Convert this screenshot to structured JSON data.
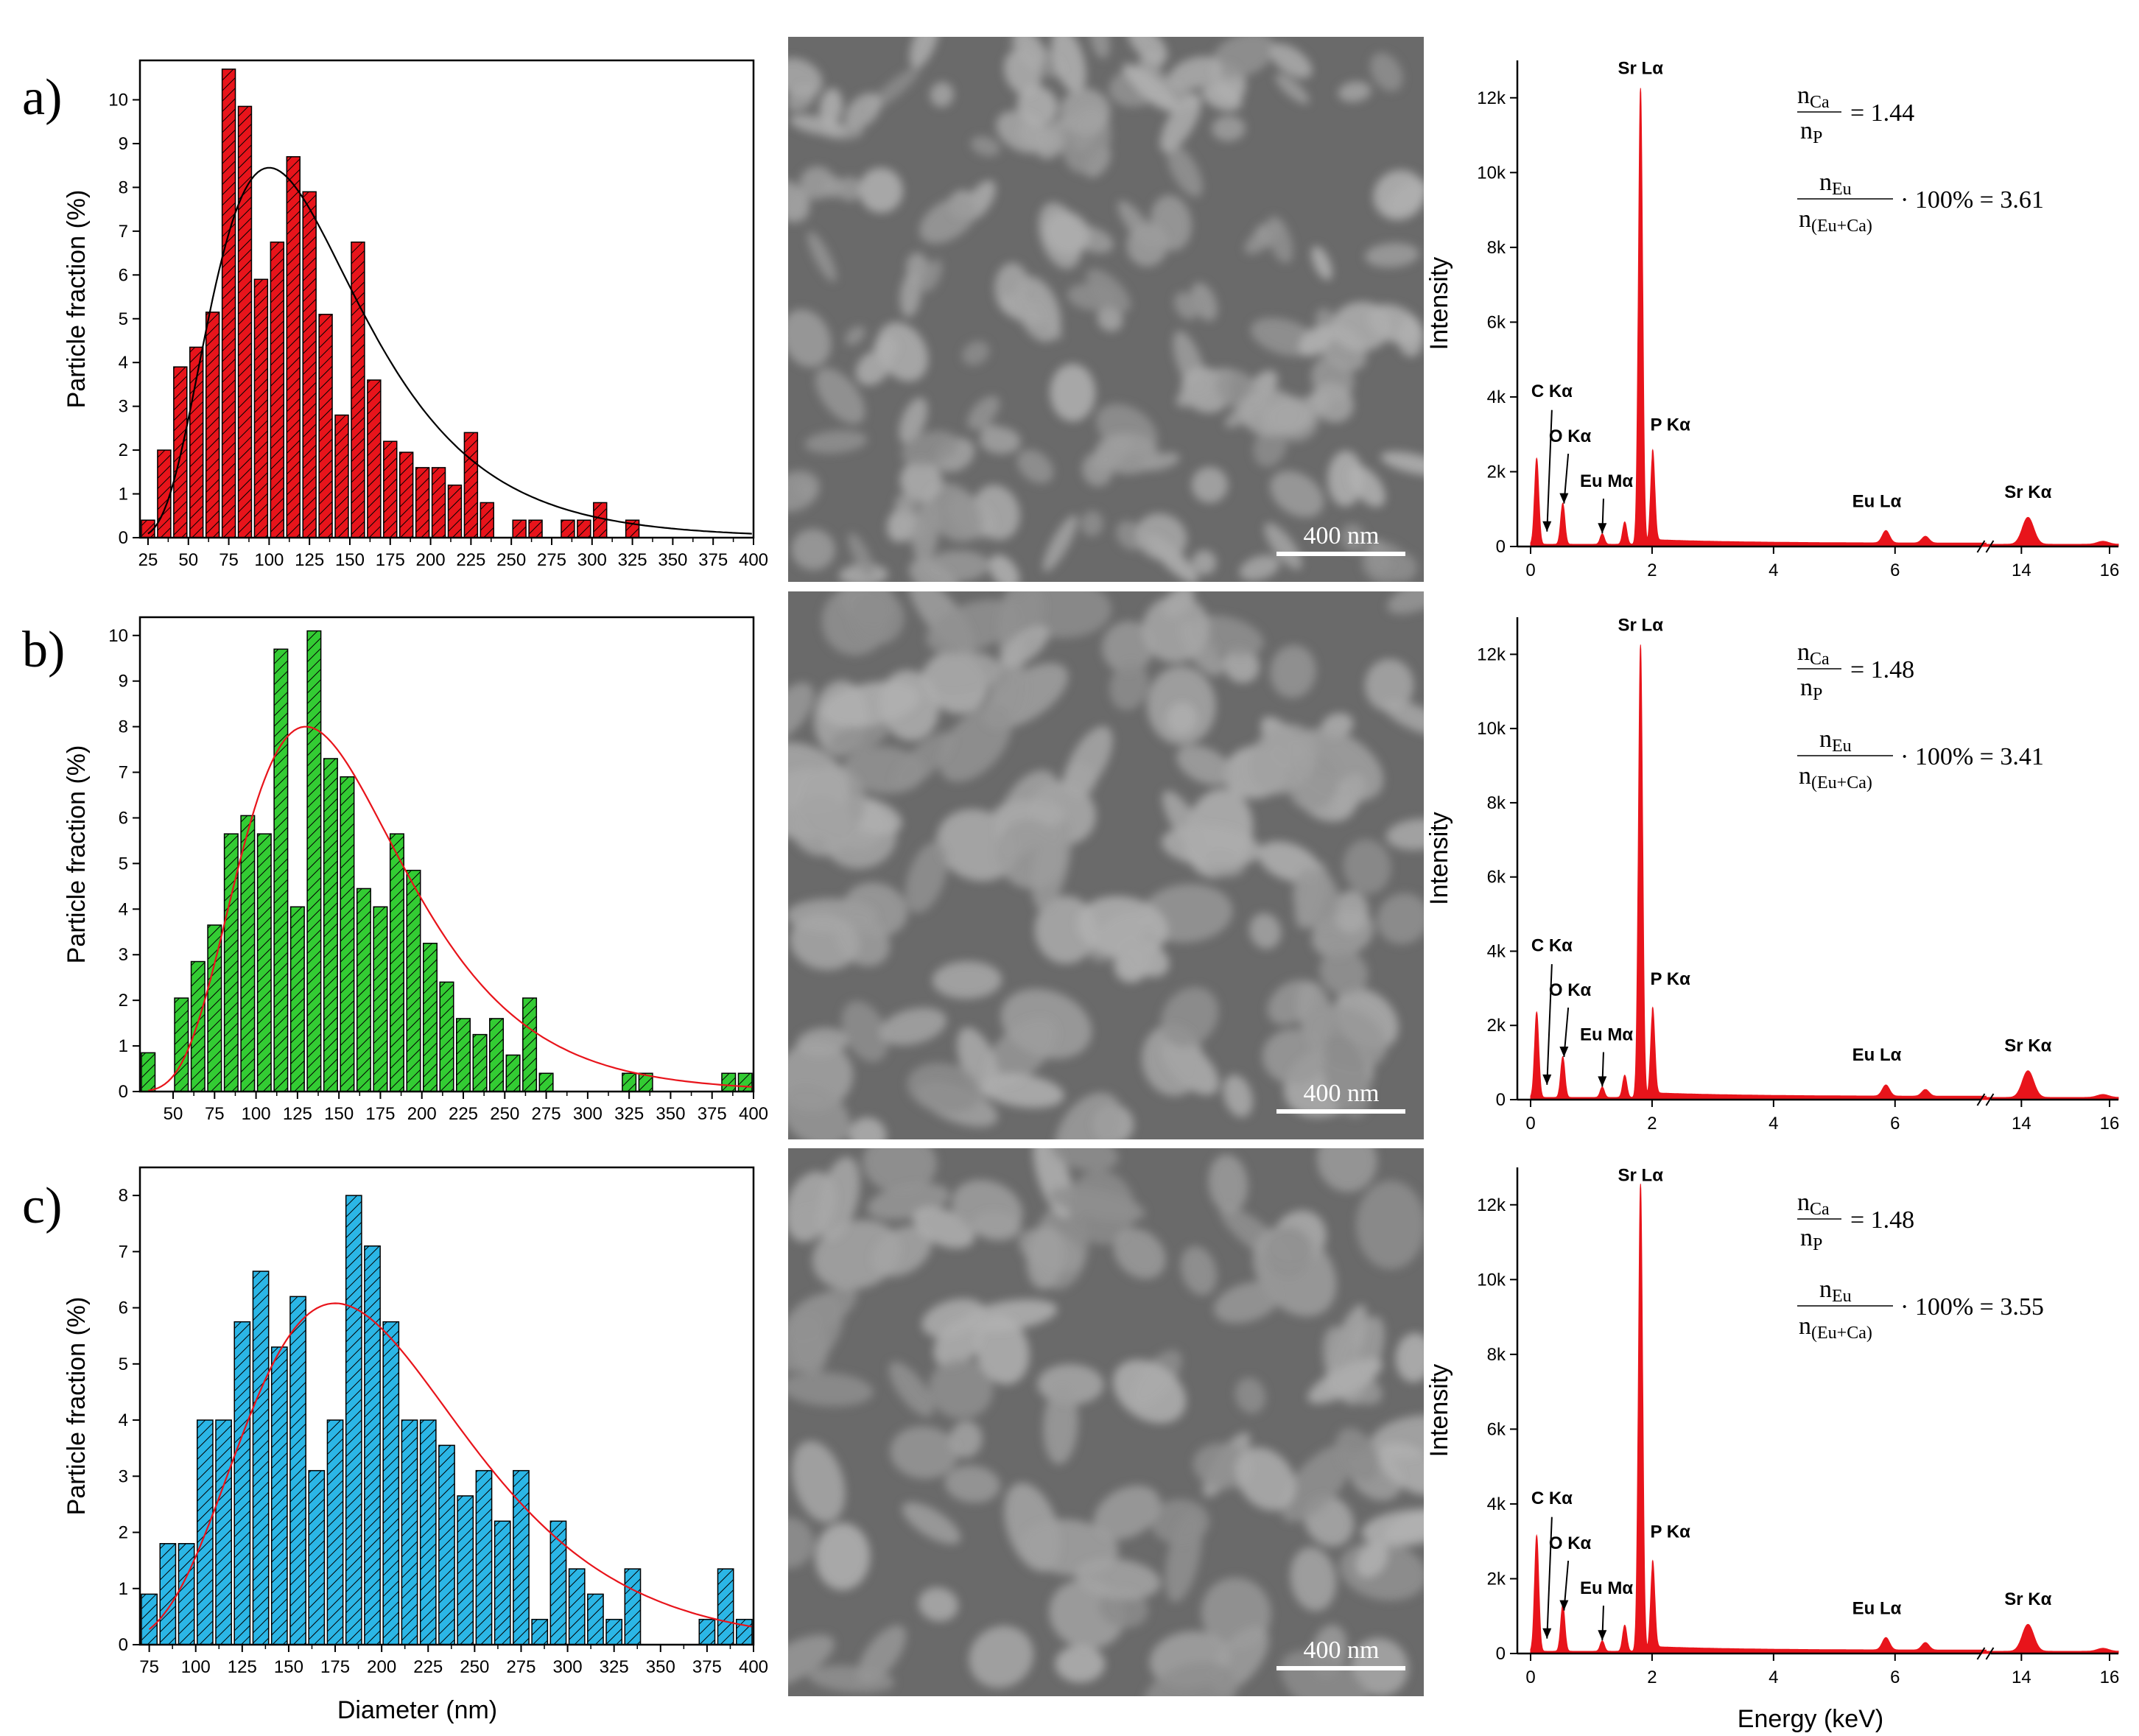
{
  "figure": {
    "panel_labels": [
      "a)",
      "b)",
      "c)"
    ],
    "sem_scale_bar": "400 nm",
    "colors": {
      "red": "#e8141b",
      "green": "#33cc33",
      "blue": "#2bb6e6",
      "sem_bg": "#6a6a6a",
      "sem_particle": "#9c9c9c"
    }
  },
  "chart_data": [
    {
      "type": "bar",
      "panel": "a)",
      "xlabel": "",
      "ylabel": "Particle fraction (%)",
      "xlim": [
        20,
        400
      ],
      "ylim": [
        0,
        10.9
      ],
      "xticks": [
        25,
        50,
        75,
        100,
        125,
        150,
        175,
        200,
        225,
        250,
        275,
        300,
        325,
        350,
        375,
        400
      ],
      "yticks": [
        0,
        1,
        2,
        3,
        4,
        5,
        6,
        7,
        8,
        9,
        10
      ],
      "bin_width": 10,
      "bar_color": "#e8141b",
      "x": [
        25,
        35,
        45,
        55,
        65,
        75,
        85,
        95,
        105,
        115,
        125,
        135,
        145,
        155,
        165,
        175,
        185,
        195,
        205,
        215,
        225,
        235,
        245,
        255,
        265,
        275,
        285,
        295,
        305,
        315,
        325
      ],
      "values": [
        0.4,
        2.0,
        3.9,
        4.35,
        5.15,
        10.7,
        9.85,
        5.9,
        6.75,
        8.7,
        7.9,
        5.1,
        2.8,
        6.75,
        3.6,
        2.2,
        1.95,
        1.6,
        1.6,
        1.2,
        2.4,
        0.8,
        0,
        0.4,
        0.4,
        0,
        0.4,
        0.4,
        0.8,
        0,
        0.4
      ],
      "fit": {
        "color": "#000000",
        "type": "lognormal",
        "peak_x": 100,
        "peak_y": 8.45,
        "left_x": 25,
        "left_y": 2.65,
        "right_x": 400,
        "right_y": 0.02
      }
    },
    {
      "type": "bar",
      "panel": "b)",
      "xlabel": "",
      "ylabel": "Particle fraction (%)",
      "xlim": [
        30,
        400
      ],
      "ylim": [
        0,
        10.4
      ],
      "xticks": [
        50,
        75,
        100,
        125,
        150,
        175,
        200,
        225,
        250,
        275,
        300,
        325,
        350,
        375,
        400
      ],
      "yticks": [
        0,
        1,
        2,
        3,
        4,
        5,
        6,
        7,
        8,
        9,
        10
      ],
      "bin_width": 10,
      "bar_color": "#33cc33",
      "x": [
        35,
        45,
        55,
        65,
        75,
        85,
        95,
        105,
        115,
        125,
        135,
        145,
        155,
        165,
        175,
        185,
        195,
        205,
        215,
        225,
        235,
        245,
        255,
        265,
        275,
        285,
        295,
        305,
        315,
        325,
        335,
        345,
        355,
        365,
        375,
        385,
        395
      ],
      "values": [
        0.85,
        0,
        2.05,
        2.85,
        3.65,
        5.65,
        6.05,
        5.65,
        9.7,
        4.05,
        10.1,
        7.3,
        6.9,
        4.45,
        4.05,
        5.65,
        4.85,
        3.25,
        2.4,
        1.6,
        1.25,
        1.6,
        0.8,
        2.05,
        0.4,
        0,
        0,
        0,
        0,
        0.4,
        0.4,
        0,
        0,
        0,
        0,
        0.4,
        0.4
      ]
    },
    {
      "type": "bar",
      "panel": "c)",
      "xlabel": "Diameter (nm)",
      "ylabel": "Particle fraction (%)",
      "xlim": [
        70,
        400
      ],
      "ylim": [
        0,
        8.5
      ],
      "xticks": [
        75,
        100,
        125,
        150,
        175,
        200,
        225,
        250,
        275,
        300,
        325,
        350,
        375,
        400
      ],
      "yticks": [
        0,
        1,
        2,
        3,
        4,
        5,
        6,
        7,
        8
      ],
      "bin_width": 10,
      "bar_color": "#2bb6e6",
      "x": [
        75,
        85,
        95,
        105,
        115,
        125,
        135,
        145,
        155,
        165,
        175,
        185,
        195,
        205,
        215,
        225,
        235,
        245,
        255,
        265,
        275,
        285,
        295,
        305,
        315,
        325,
        335,
        345,
        355,
        365,
        375,
        385,
        395
      ],
      "values": [
        0.9,
        1.8,
        1.8,
        4.0,
        4.0,
        5.75,
        6.65,
        5.3,
        6.2,
        3.1,
        4.0,
        8.0,
        7.1,
        5.75,
        4.0,
        4.0,
        3.55,
        2.65,
        3.1,
        2.2,
        3.1,
        0.45,
        2.2,
        1.35,
        0.9,
        0.45,
        1.35,
        0,
        0,
        0,
        0.45,
        1.35,
        0.45
      ]
    },
    {
      "type": "area",
      "panel": "a)",
      "ylabel": "Intensity",
      "xlabel": "",
      "color": "#e8141b",
      "xticks": [
        0,
        2,
        4,
        6,
        14,
        16
      ],
      "ytick_labels": [
        "0",
        "2k",
        "4k",
        "6k",
        "8k",
        "10k",
        "12k"
      ],
      "ylim": [
        0,
        13000
      ],
      "axis_break": [
        7.5,
        13.2
      ],
      "peaks": [
        {
          "x": 0.1,
          "y": 2300
        },
        {
          "x": 0.53,
          "y": 1100
        },
        {
          "x": 1.18,
          "y": 280
        },
        {
          "x": 1.55,
          "y": 600
        },
        {
          "x": 1.81,
          "y": 12200
        },
        {
          "x": 2.01,
          "y": 2400
        },
        {
          "x": 5.85,
          "y": 330
        },
        {
          "x": 6.5,
          "y": 180
        },
        {
          "x": 14.15,
          "y": 720
        },
        {
          "x": 15.85,
          "y": 80
        }
      ],
      "labels": [
        "Sr Lα",
        "C Kα",
        "O Kα",
        "Eu Mα",
        "P Kα",
        "Eu Lα",
        "Sr Kα"
      ],
      "ratio_ca_p": "= 1.44",
      "ratio_eu": "· 100% = 3.61"
    },
    {
      "type": "area",
      "panel": "b)",
      "ylabel": "Intensity",
      "xlabel": "",
      "color": "#e8141b",
      "xticks": [
        0,
        2,
        4,
        6,
        14,
        16
      ],
      "ytick_labels": [
        "0",
        "2k",
        "4k",
        "6k",
        "8k",
        "10k",
        "12k"
      ],
      "ylim": [
        0,
        13000
      ],
      "axis_break": [
        7.5,
        13.2
      ],
      "peaks": [
        {
          "x": 0.1,
          "y": 2300
        },
        {
          "x": 0.53,
          "y": 1100
        },
        {
          "x": 1.18,
          "y": 280
        },
        {
          "x": 1.55,
          "y": 600
        },
        {
          "x": 1.81,
          "y": 12200
        },
        {
          "x": 2.01,
          "y": 2300
        },
        {
          "x": 5.85,
          "y": 300
        },
        {
          "x": 6.5,
          "y": 180
        },
        {
          "x": 14.15,
          "y": 720
        },
        {
          "x": 15.85,
          "y": 80
        }
      ],
      "labels": [
        "Sr Lα",
        "C Kα",
        "O Kα",
        "Eu Mα",
        "P Kα",
        "Eu Lα",
        "Sr Kα"
      ],
      "ratio_ca_p": "= 1.48",
      "ratio_eu": "· 100% = 3.41"
    },
    {
      "type": "area",
      "panel": "c)",
      "ylabel": "Intensity",
      "xlabel": "Energy (keV)",
      "color": "#e8141b",
      "xticks": [
        0,
        2,
        4,
        6,
        14,
        16
      ],
      "ytick_labels": [
        "0",
        "2k",
        "4k",
        "6k",
        "8k",
        "10k",
        "12k"
      ],
      "ylim": [
        0,
        13000
      ],
      "axis_break": [
        7.5,
        13.2
      ],
      "peaks": [
        {
          "x": 0.1,
          "y": 3100
        },
        {
          "x": 0.53,
          "y": 1250
        },
        {
          "x": 1.18,
          "y": 280
        },
        {
          "x": 1.55,
          "y": 700
        },
        {
          "x": 1.81,
          "y": 12500
        },
        {
          "x": 2.01,
          "y": 2300
        },
        {
          "x": 5.85,
          "y": 330
        },
        {
          "x": 6.5,
          "y": 200
        },
        {
          "x": 14.15,
          "y": 720
        },
        {
          "x": 15.85,
          "y": 80
        }
      ],
      "labels": [
        "Sr Lα",
        "C Kα",
        "O Kα",
        "Eu Mα",
        "P Kα",
        "Eu Lα",
        "Sr Kα"
      ],
      "ratio_ca_p": "= 1.48",
      "ratio_eu": "· 100% = 3.55"
    }
  ]
}
